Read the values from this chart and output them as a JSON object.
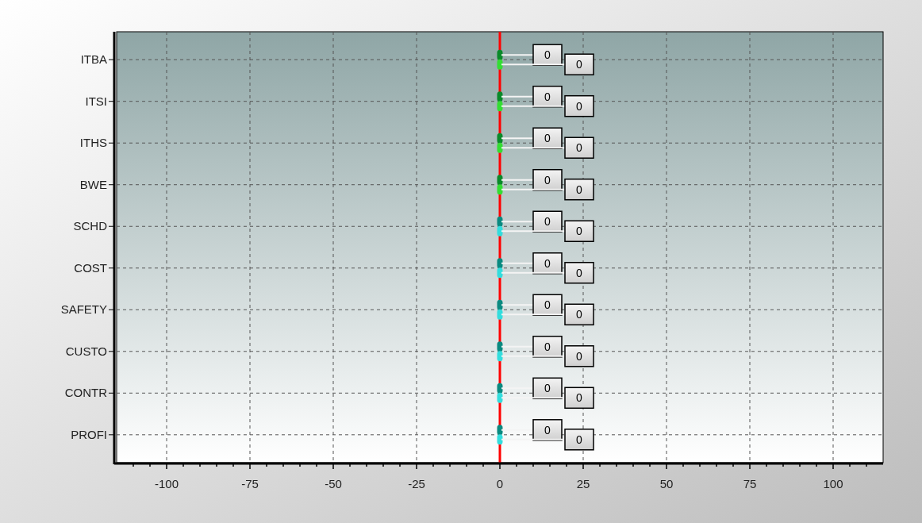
{
  "chart_data": {
    "type": "bar",
    "orientation": "horizontal",
    "categories": [
      "ITBA",
      "ITSI",
      "ITHS",
      "BWE",
      "SCHD",
      "COST",
      "SAFETY",
      "CUSTO",
      "CONTR",
      "PROFI"
    ],
    "series": [
      {
        "colors": [
          "#0a8a2a",
          "#0a8a2a",
          "#0a8a2a",
          "#0a8a2a",
          "#0a8a80",
          "#0a8a80",
          "#0a8a80",
          "#0a8a80",
          "#0a8a80",
          "#0a8a80"
        ],
        "values": [
          0,
          0,
          0,
          0,
          0,
          0,
          0,
          0,
          0,
          0
        ]
      },
      {
        "colors": [
          "#33dd33",
          "#33dd33",
          "#33dd33",
          "#33dd33",
          "#33dddd",
          "#33dddd",
          "#33dddd",
          "#33dddd",
          "#33dddd",
          "#33dddd"
        ],
        "values": [
          0,
          0,
          0,
          0,
          0,
          0,
          0,
          0,
          0,
          0
        ]
      }
    ],
    "xlim": [
      -115,
      115
    ],
    "xticks": [
      {
        "value": -110,
        "label": null
      },
      {
        "value": -105,
        "label": null
      },
      -100,
      {
        "value": -95,
        "label": null
      },
      {
        "value": -90,
        "label": null
      },
      {
        "value": -85,
        "label": null
      },
      {
        "value": -80,
        "label": null
      },
      -75,
      {
        "value": -70,
        "label": null
      },
      {
        "value": -65,
        "label": null
      },
      {
        "value": -60,
        "label": null
      },
      {
        "value": -55,
        "label": null
      },
      -50,
      {
        "value": -45,
        "label": null
      },
      {
        "value": -40,
        "label": null
      },
      {
        "value": -35,
        "label": null
      },
      {
        "value": -30,
        "label": null
      },
      -25,
      {
        "value": -20,
        "label": null
      },
      {
        "value": -15,
        "label": null
      },
      {
        "value": -10,
        "label": null
      },
      {
        "value": -5,
        "label": null
      },
      0,
      {
        "value": 5,
        "label": null
      },
      {
        "value": 10,
        "label": null
      },
      {
        "value": 15,
        "label": null
      },
      {
        "value": 20,
        "label": null
      },
      25,
      {
        "value": 30,
        "label": null
      },
      {
        "value": 35,
        "label": null
      },
      {
        "value": 40,
        "label": null
      },
      {
        "value": 45,
        "label": null
      },
      50,
      {
        "value": 55,
        "label": null
      },
      {
        "value": 60,
        "label": null
      },
      {
        "value": 65,
        "label": null
      },
      {
        "value": 70,
        "label": null
      },
      75,
      {
        "value": 80,
        "label": null
      },
      {
        "value": 85,
        "label": null
      },
      {
        "value": 90,
        "label": null
      },
      {
        "value": 95,
        "label": null
      },
      100,
      {
        "value": 105,
        "label": null
      },
      {
        "value": 110,
        "label": null
      }
    ],
    "ref_lines": [
      {
        "axis": "x",
        "value": 0,
        "color": "#ff0000"
      }
    ],
    "grid": true,
    "data_labels": true
  }
}
